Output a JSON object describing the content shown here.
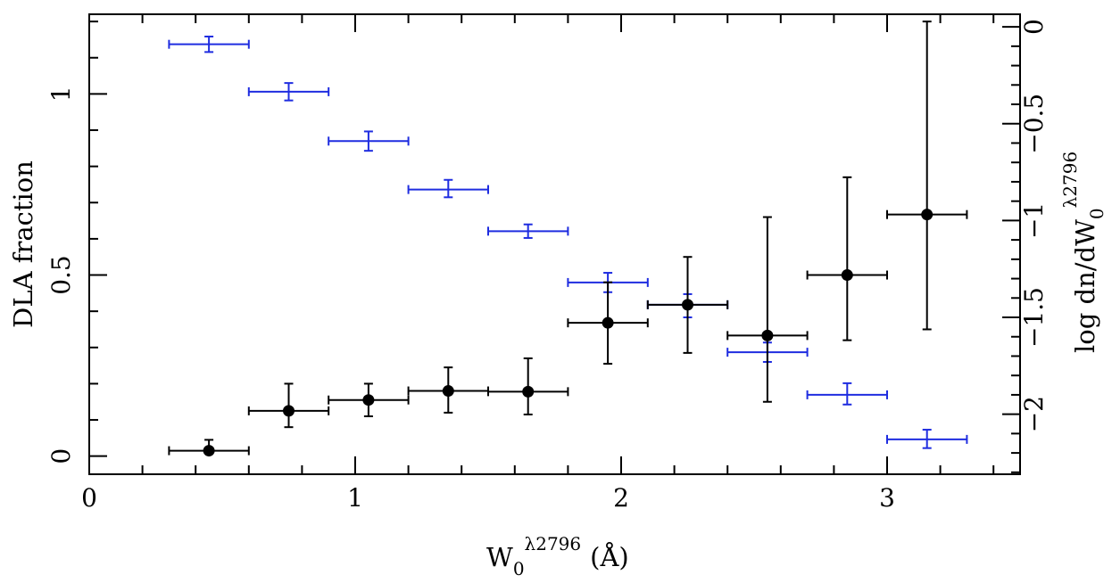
{
  "chart_data": {
    "type": "scatter",
    "xlabel": {
      "main": "W",
      "sub": "0",
      "sup": "λ2796",
      "unit": "(Å)"
    },
    "ylabel_left": "DLA fraction",
    "ylabel_right": {
      "main": "log dn/dW",
      "sub": "0",
      "sup": "λ2796"
    },
    "xlim": [
      0,
      3.5
    ],
    "ylim_left": [
      -0.05,
      1.22
    ],
    "ylim_right": [
      -2.31,
      0.065
    ],
    "x_ticks": [
      0,
      1,
      2,
      3
    ],
    "x_tick_labels": [
      "0",
      "1",
      "2",
      "3"
    ],
    "y_left_ticks": [
      0,
      0.5,
      1
    ],
    "y_left_tick_labels": [
      "0",
      "0.5",
      "1"
    ],
    "y_right_ticks": [
      0,
      -0.5,
      -1,
      -1.5,
      -2
    ],
    "y_right_tick_labels": [
      "0",
      "−0.5",
      "−1",
      "−1.5",
      "−2"
    ],
    "series": [
      {
        "name": "DLA fraction",
        "axis": "left",
        "color": "#000000",
        "marker": "filled-circle",
        "points": [
          {
            "x": 0.45,
            "xerr": 0.15,
            "y": 0.015,
            "ylo": 0.015,
            "yhi": 0.045
          },
          {
            "x": 0.75,
            "xerr": 0.15,
            "y": 0.125,
            "ylo": 0.08,
            "yhi": 0.2
          },
          {
            "x": 1.05,
            "xerr": 0.15,
            "y": 0.155,
            "ylo": 0.11,
            "yhi": 0.2
          },
          {
            "x": 1.35,
            "xerr": 0.15,
            "y": 0.18,
            "ylo": 0.12,
            "yhi": 0.245
          },
          {
            "x": 1.65,
            "xerr": 0.15,
            "y": 0.178,
            "ylo": 0.115,
            "yhi": 0.27
          },
          {
            "x": 1.95,
            "xerr": 0.15,
            "y": 0.368,
            "ylo": 0.255,
            "yhi": 0.48
          },
          {
            "x": 2.25,
            "xerr": 0.15,
            "y": 0.418,
            "ylo": 0.285,
            "yhi": 0.55
          },
          {
            "x": 2.55,
            "xerr": 0.15,
            "y": 0.333,
            "ylo": 0.15,
            "yhi": 0.66
          },
          {
            "x": 2.85,
            "xerr": 0.15,
            "y": 0.5,
            "ylo": 0.32,
            "yhi": 0.77
          },
          {
            "x": 3.15,
            "xerr": 0.15,
            "y": 0.667,
            "ylo": 0.35,
            "yhi": 1.2
          }
        ]
      },
      {
        "name": "log dn/dW0",
        "axis": "right",
        "color": "#1f2de0",
        "marker": "none",
        "points": [
          {
            "x": 0.45,
            "xerr": 0.15,
            "y": -0.09,
            "ylo": -0.13,
            "yhi": -0.05
          },
          {
            "x": 0.75,
            "xerr": 0.15,
            "y": -0.335,
            "ylo": -0.38,
            "yhi": -0.29
          },
          {
            "x": 1.05,
            "xerr": 0.15,
            "y": -0.59,
            "ylo": -0.64,
            "yhi": -0.54
          },
          {
            "x": 1.35,
            "xerr": 0.15,
            "y": -0.84,
            "ylo": -0.88,
            "yhi": -0.79
          },
          {
            "x": 1.65,
            "xerr": 0.15,
            "y": -1.055,
            "ylo": -1.09,
            "yhi": -1.02
          },
          {
            "x": 1.95,
            "xerr": 0.15,
            "y": -1.32,
            "ylo": -1.37,
            "yhi": -1.27
          },
          {
            "x": 2.25,
            "xerr": 0.15,
            "y": -1.435,
            "ylo": -1.5,
            "yhi": -1.38
          },
          {
            "x": 2.55,
            "xerr": 0.15,
            "y": -1.68,
            "ylo": -1.73,
            "yhi": -1.63
          },
          {
            "x": 2.85,
            "xerr": 0.15,
            "y": -1.9,
            "ylo": -1.95,
            "yhi": -1.84
          },
          {
            "x": 3.15,
            "xerr": 0.15,
            "y": -2.13,
            "ylo": -2.175,
            "yhi": -2.08
          }
        ]
      }
    ]
  }
}
